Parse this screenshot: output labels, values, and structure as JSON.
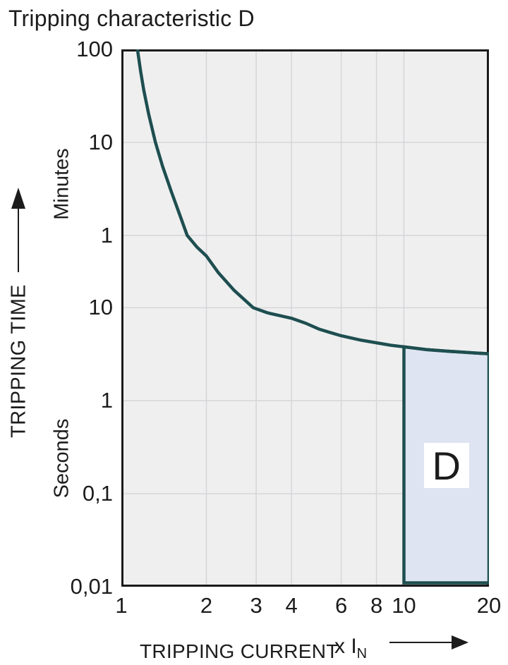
{
  "title": "Tripping characteristic D",
  "colors": {
    "text": "#1c1c1c",
    "plot_background": "#efeff0",
    "gridline": "#d6d6d9",
    "axis_border": "#1a1a1a",
    "curve": "#1e4e50",
    "region_fill": "#dfe4f2",
    "region_border": "#1e4e50",
    "label_box": "#ffffff"
  },
  "chart_data": {
    "type": "line",
    "title": "Tripping characteristic D",
    "x_axis": {
      "label": "TRIPPING CURRENT",
      "unit_prefix": "x I",
      "unit_sub": "N",
      "scale": "log",
      "min": 1,
      "max": 20,
      "ticks": [
        {
          "v": 1,
          "label": "1"
        },
        {
          "v": 2,
          "label": "2"
        },
        {
          "v": 3,
          "label": "3"
        },
        {
          "v": 4,
          "label": "4"
        },
        {
          "v": 6,
          "label": "6"
        },
        {
          "v": 8,
          "label": "8"
        },
        {
          "v": 10,
          "label": "10"
        },
        {
          "v": 20,
          "label": "20"
        }
      ],
      "grid_values": [
        2,
        3,
        4,
        6,
        8,
        10
      ]
    },
    "y_axis": {
      "label": "TRIPPING TIME",
      "scale": "log",
      "unit_minutes": "Minutes",
      "unit_seconds": "Seconds",
      "max_seconds": 6000,
      "min_seconds": 0.01,
      "ticks": [
        {
          "seconds": 6000,
          "label": "100"
        },
        {
          "seconds": 600,
          "label": "10"
        },
        {
          "seconds": 60,
          "label": "1"
        },
        {
          "seconds": 10,
          "label": "10"
        },
        {
          "seconds": 1,
          "label": "1"
        },
        {
          "seconds": 0.1,
          "label": "0,1"
        },
        {
          "seconds": 0.01,
          "label": "0,01"
        }
      ],
      "grid_seconds": [
        600,
        60,
        10,
        1,
        0.1
      ]
    },
    "series": [
      {
        "name": "thermal-tripping-curve",
        "color": "#1e4e50",
        "points": [
          [
            1.14,
            6000
          ],
          [
            1.17,
            3500
          ],
          [
            1.2,
            2200
          ],
          [
            1.25,
            1200
          ],
          [
            1.32,
            600
          ],
          [
            1.4,
            330
          ],
          [
            1.5,
            180
          ],
          [
            1.6,
            105
          ],
          [
            1.71,
            60
          ],
          [
            1.85,
            45
          ],
          [
            2.0,
            36
          ],
          [
            2.2,
            24
          ],
          [
            2.5,
            15.5
          ],
          [
            2.93,
            10
          ],
          [
            3.3,
            8.8
          ],
          [
            4.0,
            7.7
          ],
          [
            4.5,
            6.8
          ],
          [
            5.0,
            5.9
          ],
          [
            5.5,
            5.4
          ],
          [
            6.0,
            5.0
          ],
          [
            7.0,
            4.5
          ],
          [
            8.0,
            4.2
          ],
          [
            9.0,
            3.95
          ],
          [
            10.0,
            3.8
          ],
          [
            12.0,
            3.55
          ],
          [
            14.0,
            3.42
          ],
          [
            16.0,
            3.33
          ],
          [
            18.0,
            3.26
          ],
          [
            20.0,
            3.2
          ]
        ]
      }
    ],
    "region": {
      "label": "D",
      "x_from": 10,
      "x_to": 20,
      "t_bottom": 0.011,
      "t_top_follows": "curve",
      "fill": "#dfe4f2",
      "border": "#1e4e50"
    }
  }
}
